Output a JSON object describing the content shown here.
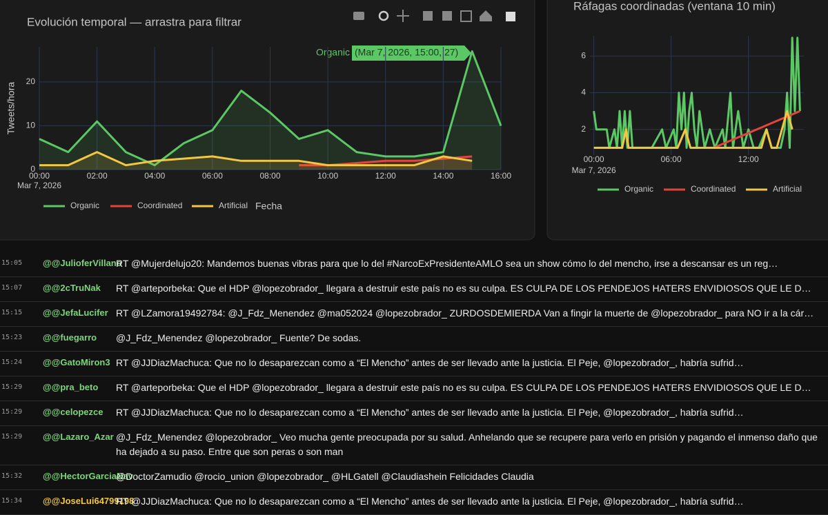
{
  "chart_data": [
    {
      "type": "line",
      "area": true,
      "title": "Evolución temporal — arrastra para filtrar",
      "y_label": "Tweets/hora",
      "x_label": "Fecha",
      "date_label": "Mar 7, 2026",
      "hover_label": "(Mar 7, 2026, 15:00, 27)",
      "x": [
        0,
        1,
        2,
        3,
        4,
        5,
        6,
        7,
        8,
        9,
        10,
        11,
        12,
        13,
        14,
        15,
        16
      ],
      "series": [
        {
          "name": "Organic",
          "color": "#5cc765",
          "values": [
            7,
            4,
            11,
            4,
            1,
            6,
            9,
            18,
            13,
            7,
            9,
            4,
            3,
            3,
            4,
            27,
            10
          ]
        },
        {
          "name": "Coordinated",
          "color": "#e2453c",
          "values": [
            null,
            null,
            null,
            null,
            null,
            null,
            null,
            null,
            null,
            1,
            1,
            1.5,
            2,
            2,
            2.5,
            3,
            null
          ]
        },
        {
          "name": "Artificial",
          "color": "#f2c744",
          "values": [
            1,
            1,
            4,
            1,
            2,
            2.5,
            3,
            2,
            2,
            2,
            1,
            1,
            1,
            1,
            3,
            2,
            null
          ]
        }
      ],
      "xlim": [
        0,
        16
      ],
      "ylim": [
        0,
        28
      ],
      "xticks": [
        {
          "value": 0,
          "label": "00:00"
        },
        {
          "value": 2,
          "label": "02:00"
        },
        {
          "value": 4,
          "label": "04:00"
        },
        {
          "value": 6,
          "label": "06:00"
        },
        {
          "value": 8,
          "label": "08:00"
        },
        {
          "value": 10,
          "label": "10:00"
        },
        {
          "value": 12,
          "label": "12:00"
        },
        {
          "value": 14,
          "label": "14:00"
        },
        {
          "value": 16,
          "label": "16:00"
        }
      ],
      "yticks": [
        0,
        10,
        20
      ],
      "grid": true,
      "legend": "bottom"
    },
    {
      "type": "line",
      "area": false,
      "title": "Ráfagas coordinadas (ventana 10 min)",
      "date_label": "Mar 7, 2026",
      "series": [
        {
          "name": "Organic",
          "color": "#5cc765",
          "x": [
            0,
            0.2,
            1,
            1.2,
            1.6,
            1.8,
            2,
            2.2,
            2.4,
            2.6,
            2.8,
            3,
            4.5,
            5.3,
            5.6,
            6.2,
            6.4,
            6.6,
            6.8,
            7,
            7.2,
            7.4,
            7.6,
            7.8,
            8,
            8.2,
            8.4,
            8.6,
            9,
            9.4,
            10,
            10.2,
            10.6,
            10.8,
            11.2,
            11.6,
            12,
            12.4,
            12.8,
            13.4,
            13.8,
            14.5,
            14.8,
            15,
            15.2,
            15.4,
            15.6,
            15.8,
            16
          ],
          "values": [
            3,
            2,
            2,
            1,
            2,
            1,
            3,
            1,
            3,
            1,
            3,
            1,
            1,
            2,
            1,
            2,
            1,
            4,
            2,
            4,
            1,
            3,
            4,
            2,
            1,
            3,
            2,
            1,
            2,
            1,
            2,
            1,
            4,
            1,
            3,
            1,
            2,
            1,
            1,
            2,
            1,
            1,
            2,
            4,
            1,
            7,
            3,
            7,
            3
          ]
        },
        {
          "name": "Coordinated",
          "color": "#e2453c",
          "x": [
            9.3,
            16
          ],
          "values": [
            1,
            3
          ]
        },
        {
          "name": "Artificial",
          "color": "#f2c744",
          "x": [
            0,
            2.2,
            2.5,
            2.7,
            4.6,
            5.8,
            6.5,
            7.1,
            7.5,
            12.5,
            13,
            13.4,
            13.8,
            14.2,
            15,
            15.4
          ],
          "values": [
            1,
            1,
            2,
            1,
            1,
            1,
            1,
            2,
            1,
            1,
            1,
            2,
            1,
            1,
            3,
            2
          ]
        }
      ],
      "xlim": [
        -0.3,
        16.3
      ],
      "ylim": [
        0.6,
        7.1
      ],
      "xticks": [
        {
          "value": 0,
          "label": "00:00"
        },
        {
          "value": 6,
          "label": "06:00"
        },
        {
          "value": 12,
          "label": "12:00"
        }
      ],
      "yticks": [
        2,
        4,
        6
      ],
      "grid": true,
      "legend": "bottom"
    }
  ],
  "tweets": [
    {
      "time": "15:05",
      "user": "@@JulioferVillano",
      "color": "#7bd67a",
      "text": "RT @Mujerdelujo20: Mandemos buenas vibras para que lo del #NarcoExPresidenteAMLO sea un show cómo lo del mencho, irse a descansar es un reg…"
    },
    {
      "time": "15:07",
      "user": "@@2cTruNak",
      "color": "#7bd67a",
      "text": "RT @arteporbeka: Que el HDP @lopezobrador_ llegara a destruir este país no es su culpa. ES CULPA DE LOS PENDEJOS HATERS ENVIDIOSOS QUE LE D…"
    },
    {
      "time": "15:15",
      "user": "@@JefaLucifer",
      "color": "#7bd67a",
      "text": "RT @LZamora19492784: @J_Fdz_Menendez @ma052024 @lopezobrador_ ZURDOSDEMIERDA Van a fingir la muerte de @lopezobrador_ para NO ir a la cár…"
    },
    {
      "time": "15:23",
      "user": "@@fuegarro",
      "color": "#7bd67a",
      "text": "@J_Fdz_Menendez @lopezobrador_ Fuente? De sodas."
    },
    {
      "time": "15:24",
      "user": "@@GatoMiron3",
      "color": "#7bd67a",
      "text": "RT @JJDiazMachuca: Que no lo desaparezcan como a “El Mencho” antes de ser llevado ante la justicia. El Peje, @lopezobrador_, habría sufrid…"
    },
    {
      "time": "15:29",
      "user": "@@pra_beto",
      "color": "#7bd67a",
      "text": "RT @arteporbeka: Que el HDP @lopezobrador_ llegara a destruir este país no es su culpa. ES CULPA DE LOS PENDEJOS HATERS ENVIDIOSOS QUE LE D…"
    },
    {
      "time": "15:29",
      "user": "@@celopezce",
      "color": "#7bd67a",
      "text": "RT @JJDiazMachuca: Que no lo desaparezcan como a “El Mencho” antes de ser llevado ante la justicia. El Peje, @lopezobrador_, habría sufrid…"
    },
    {
      "time": "15:29",
      "user": "@@Lazaro_Azar",
      "color": "#7bd67a",
      "text": "@J_Fdz_Menendez @lopezobrador_ Veo mucha gente preocupada por su salud. Anhelando que se recupere para verlo en prisión y pagando el inmenso daño que ha dejado a su paso. Entre que son peras o son man"
    },
    {
      "time": "15:32",
      "user": "@@HectorGarciaNav",
      "color": "#7bd67a",
      "text": "@DoctorZamudio @rocio_union @lopezobrador_ @HLGatell @Claudiashein Felicidades Claudia"
    },
    {
      "time": "15:34",
      "user": "@@JoseLui64799198",
      "color": "#f2c744",
      "text": "RT @JJDiazMachuca: Que no lo desaparezcan como a “El Mencho” antes de ser llevado ante la justicia. El Peje, @lopezobrador_, habría sufrid…"
    }
  ]
}
